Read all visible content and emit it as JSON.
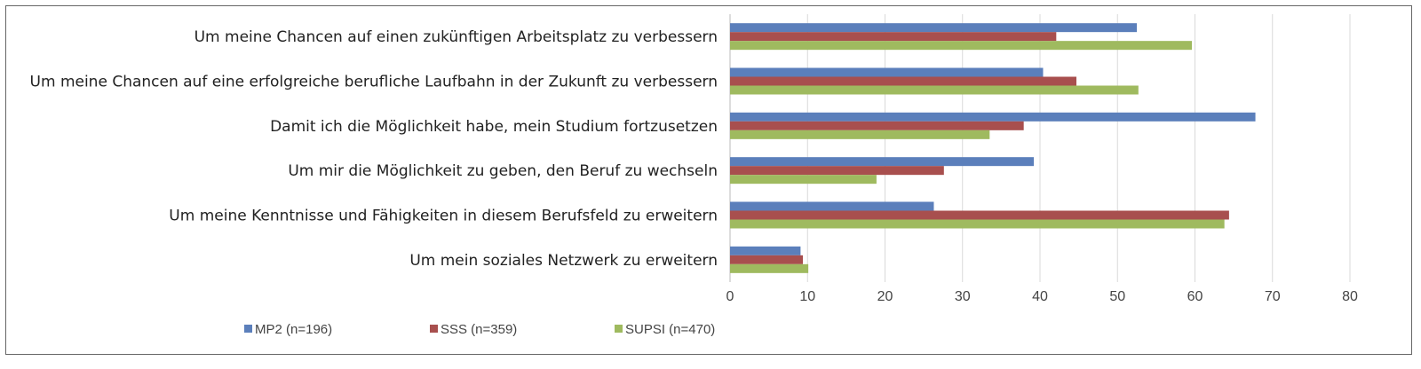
{
  "chart_data": {
    "type": "bar",
    "orientation": "horizontal",
    "title": "",
    "xlabel": "",
    "ylabel": "",
    "xlim": [
      0,
      80
    ],
    "xticks": [
      0,
      10,
      20,
      30,
      40,
      50,
      60,
      70,
      80
    ],
    "grid": true,
    "legend_position": "bottom-left",
    "categories": [
      "Um meine Chancen auf einen zukünftigen Arbeitsplatz zu verbessern",
      "Um meine Chancen auf eine erfolgreiche berufliche Laufbahn in der Zukunft zu verbessern",
      "Damit ich die Möglichkeit habe, mein Studium fortzusetzen",
      "Um mir die Möglichkeit zu geben, den Beruf zu wechseln",
      "Um meine Kenntnisse und Fähigkeiten in diesem Berufsfeld zu erweitern",
      "Um mein soziales Netzwerk zu erweitern"
    ],
    "series": [
      {
        "name": "MP2 (n=196)",
        "color": "#5b7fbb",
        "values": [
          52.5,
          40.4,
          67.8,
          39.2,
          26.3,
          9.1
        ]
      },
      {
        "name": "SSS (n=359)",
        "color": "#a84f4e",
        "values": [
          42.1,
          44.7,
          37.9,
          27.6,
          64.4,
          9.4
        ]
      },
      {
        "name": "SUPSI (n=470)",
        "color": "#9fba5f",
        "values": [
          59.6,
          52.7,
          33.5,
          18.9,
          63.8,
          10.1
        ]
      }
    ]
  }
}
